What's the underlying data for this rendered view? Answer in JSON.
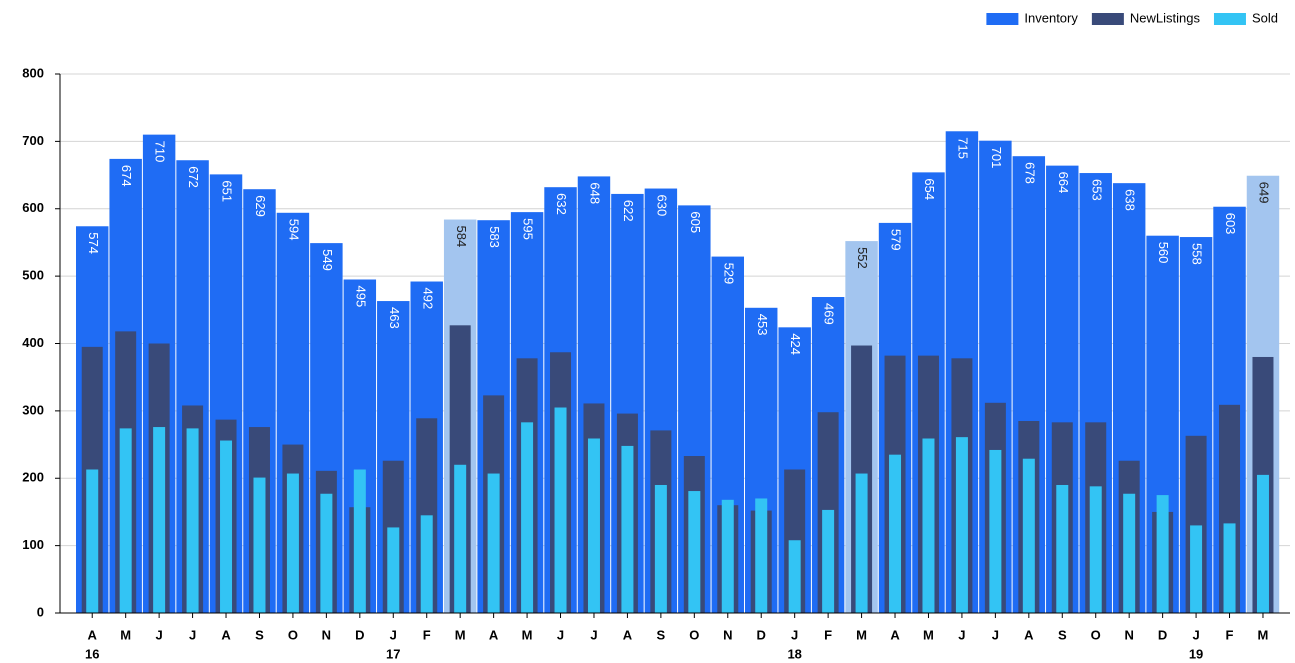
{
  "chart_data": {
    "type": "bar",
    "categories": [
      "A",
      "M",
      "J",
      "J",
      "A",
      "S",
      "O",
      "N",
      "D",
      "J",
      "F",
      "M",
      "A",
      "M",
      "J",
      "J",
      "A",
      "S",
      "O",
      "N",
      "D",
      "J",
      "F",
      "M",
      "A",
      "M",
      "J",
      "J",
      "A",
      "S",
      "O",
      "N",
      "D",
      "J",
      "F",
      "M"
    ],
    "category_groups": [
      "16",
      null,
      null,
      null,
      null,
      null,
      null,
      null,
      null,
      "17",
      null,
      null,
      null,
      null,
      null,
      null,
      null,
      null,
      null,
      null,
      null,
      "18",
      null,
      null,
      null,
      null,
      null,
      null,
      null,
      null,
      null,
      null,
      null,
      "19",
      null,
      null
    ],
    "series": [
      {
        "name": "Inventory",
        "color": "#1f6cf4",
        "colors": [
          "#1f6cf4",
          "#1f6cf4",
          "#1f6cf4",
          "#1f6cf4",
          "#1f6cf4",
          "#1f6cf4",
          "#1f6cf4",
          "#1f6cf4",
          "#1f6cf4",
          "#1f6cf4",
          "#1f6cf4",
          "#a3c5ef",
          "#1f6cf4",
          "#1f6cf4",
          "#1f6cf4",
          "#1f6cf4",
          "#1f6cf4",
          "#1f6cf4",
          "#1f6cf4",
          "#1f6cf4",
          "#1f6cf4",
          "#1f6cf4",
          "#1f6cf4",
          "#a3c5ef",
          "#1f6cf4",
          "#1f6cf4",
          "#1f6cf4",
          "#1f6cf4",
          "#1f6cf4",
          "#1f6cf4",
          "#1f6cf4",
          "#1f6cf4",
          "#1f6cf4",
          "#1f6cf4",
          "#1f6cf4",
          "#a3c5ef"
        ],
        "values": [
          574,
          674,
          710,
          672,
          651,
          629,
          594,
          549,
          495,
          463,
          492,
          584,
          583,
          595,
          632,
          648,
          622,
          630,
          605,
          529,
          453,
          424,
          469,
          552,
          579,
          654,
          715,
          701,
          678,
          664,
          653,
          638,
          560,
          558,
          603,
          649
        ]
      },
      {
        "name": "NewListings",
        "color": "#394a79",
        "values": [
          395,
          418,
          400,
          308,
          287,
          276,
          250,
          211,
          157,
          226,
          289,
          427,
          323,
          378,
          387,
          311,
          296,
          271,
          233,
          160,
          152,
          213,
          298,
          397,
          382,
          382,
          378,
          312,
          285,
          283,
          283,
          226,
          150,
          263,
          309,
          380
        ]
      },
      {
        "name": "Sold",
        "color": "#33c4f4",
        "values": [
          213,
          274,
          276,
          274,
          256,
          201,
          207,
          177,
          213,
          127,
          145,
          220,
          207,
          283,
          305,
          259,
          248,
          190,
          181,
          168,
          170,
          108,
          153,
          207,
          235,
          259,
          261,
          242,
          229,
          190,
          188,
          177,
          175,
          130,
          133,
          205
        ]
      }
    ],
    "ylim": [
      0,
      800
    ],
    "yticks": [
      0,
      100,
      200,
      300,
      400,
      500,
      600,
      700,
      800
    ],
    "grid": true,
    "legend": "top-right"
  }
}
